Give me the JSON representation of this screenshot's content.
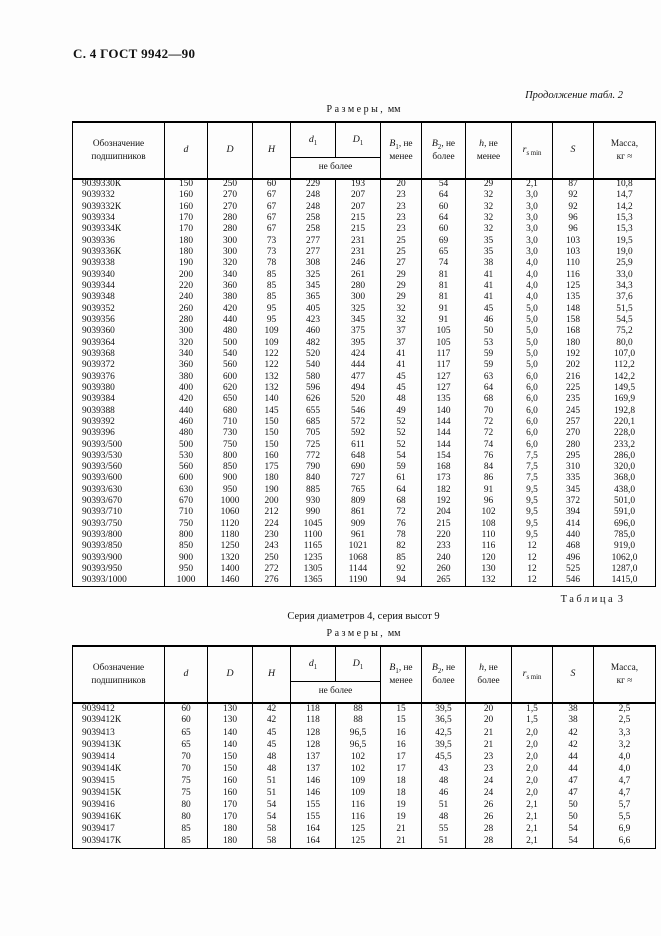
{
  "page": {
    "header": "С. 4 ГОСТ 9942—90"
  },
  "sizes": {
    "word": "Размеры,",
    "unit": "мм"
  },
  "header": {
    "designation_l1": "Обозначение",
    "designation_l2": "подшипников",
    "d": "d",
    "D": "D",
    "H": "H",
    "d1_base": "d",
    "d1_sub": "1",
    "D1_base": "D",
    "D1_sub": "1",
    "d1_note": "не более",
    "B1_base": "B",
    "B1_sub": "1",
    "B1_rest": ", не",
    "B1_l2": "менее",
    "B2_base": "B",
    "B2_sub": "2",
    "B2_rest": ", не",
    "B2_l2": "более",
    "h_base": "h",
    "h_rest": ", не",
    "rs_base": "r",
    "rs_sub": "s min",
    "S": "S",
    "mass_l1": "Масса,",
    "mass_l2": "кг ≈"
  },
  "table2": {
    "caption": "Продолжение табл. 2",
    "h_l2": "менее",
    "rows": [
      [
        "9039330К",
        "150",
        "250",
        "60",
        "229",
        "193",
        "20",
        "54",
        "29",
        "2,1",
        "87",
        "10,8"
      ],
      [
        "9039332",
        "160",
        "270",
        "67",
        "248",
        "207",
        "23",
        "64",
        "32",
        "3,0",
        "92",
        "14,7"
      ],
      [
        "9039332К",
        "160",
        "270",
        "67",
        "248",
        "207",
        "23",
        "60",
        "32",
        "3,0",
        "92",
        "14,2"
      ],
      [
        "9039334",
        "170",
        "280",
        "67",
        "258",
        "215",
        "23",
        "64",
        "32",
        "3,0",
        "96",
        "15,3"
      ],
      [
        "9039334К",
        "170",
        "280",
        "67",
        "258",
        "215",
        "23",
        "60",
        "32",
        "3,0",
        "96",
        "15,3"
      ],
      [
        "9039336",
        "180",
        "300",
        "73",
        "277",
        "231",
        "25",
        "69",
        "35",
        "3,0",
        "103",
        "19,5"
      ],
      [
        "9039336К",
        "180",
        "300",
        "73",
        "277",
        "231",
        "25",
        "65",
        "35",
        "3,0",
        "103",
        "19,0"
      ],
      [
        "9039338",
        "190",
        "320",
        "78",
        "308",
        "246",
        "27",
        "74",
        "38",
        "4,0",
        "110",
        "25,9"
      ],
      [
        "9039340",
        "200",
        "340",
        "85",
        "325",
        "261",
        "29",
        "81",
        "41",
        "4,0",
        "116",
        "33,0"
      ],
      [
        "9039344",
        "220",
        "360",
        "85",
        "345",
        "280",
        "29",
        "81",
        "41",
        "4,0",
        "125",
        "34,3"
      ],
      [
        "9039348",
        "240",
        "380",
        "85",
        "365",
        "300",
        "29",
        "81",
        "41",
        "4,0",
        "135",
        "37,6"
      ],
      [
        "9039352",
        "260",
        "420",
        "95",
        "405",
        "325",
        "32",
        "91",
        "45",
        "5,0",
        "148",
        "51,5"
      ],
      [
        "9039356",
        "280",
        "440",
        "95",
        "423",
        "345",
        "32",
        "91",
        "46",
        "5,0",
        "158",
        "54,5"
      ],
      [
        "9039360",
        "300",
        "480",
        "109",
        "460",
        "375",
        "37",
        "105",
        "50",
        "5,0",
        "168",
        "75,2"
      ],
      [
        "9039364",
        "320",
        "500",
        "109",
        "482",
        "395",
        "37",
        "105",
        "53",
        "5,0",
        "180",
        "80,0"
      ],
      [
        "9039368",
        "340",
        "540",
        "122",
        "520",
        "424",
        "41",
        "117",
        "59",
        "5,0",
        "192",
        "107,0"
      ],
      [
        "9039372",
        "360",
        "560",
        "122",
        "540",
        "444",
        "41",
        "117",
        "59",
        "5,0",
        "202",
        "112,2"
      ],
      [
        "9039376",
        "380",
        "600",
        "132",
        "580",
        "477",
        "45",
        "127",
        "63",
        "6,0",
        "216",
        "142,2"
      ],
      [
        "9039380",
        "400",
        "620",
        "132",
        "596",
        "494",
        "45",
        "127",
        "64",
        "6,0",
        "225",
        "149,5"
      ],
      [
        "9039384",
        "420",
        "650",
        "140",
        "626",
        "520",
        "48",
        "135",
        "68",
        "6,0",
        "235",
        "169,9"
      ],
      [
        "9039388",
        "440",
        "680",
        "145",
        "655",
        "546",
        "49",
        "140",
        "70",
        "6,0",
        "245",
        "192,8"
      ],
      [
        "9039392",
        "460",
        "710",
        "150",
        "685",
        "572",
        "52",
        "144",
        "72",
        "6,0",
        "257",
        "220,1"
      ],
      [
        "9039396",
        "480",
        "730",
        "150",
        "705",
        "592",
        "52",
        "144",
        "72",
        "6,0",
        "270",
        "228,0"
      ],
      [
        "90393/500",
        "500",
        "750",
        "150",
        "725",
        "611",
        "52",
        "144",
        "74",
        "6,0",
        "280",
        "233,2"
      ],
      [
        "90393/530",
        "530",
        "800",
        "160",
        "772",
        "648",
        "54",
        "154",
        "76",
        "7,5",
        "295",
        "286,0"
      ],
      [
        "90393/560",
        "560",
        "850",
        "175",
        "790",
        "690",
        "59",
        "168",
        "84",
        "7,5",
        "310",
        "320,0"
      ],
      [
        "90393/600",
        "600",
        "900",
        "180",
        "840",
        "727",
        "61",
        "173",
        "86",
        "7,5",
        "335",
        "368,0"
      ],
      [
        "90393/630",
        "630",
        "950",
        "190",
        "885",
        "765",
        "64",
        "182",
        "91",
        "9,5",
        "345",
        "438,0"
      ],
      [
        "90393/670",
        "670",
        "1000",
        "200",
        "930",
        "809",
        "68",
        "192",
        "96",
        "9,5",
        "372",
        "501,0"
      ],
      [
        "90393/710",
        "710",
        "1060",
        "212",
        "990",
        "861",
        "72",
        "204",
        "102",
        "9,5",
        "394",
        "591,0"
      ],
      [
        "90393/750",
        "750",
        "1120",
        "224",
        "1045",
        "909",
        "76",
        "215",
        "108",
        "9,5",
        "414",
        "696,0"
      ],
      [
        "90393/800",
        "800",
        "1180",
        "230",
        "1100",
        "961",
        "78",
        "220",
        "110",
        "9,5",
        "440",
        "785,0"
      ],
      [
        "90393/850",
        "850",
        "1250",
        "243",
        "1165",
        "1021",
        "82",
        "233",
        "116",
        "12",
        "468",
        "919,0"
      ],
      [
        "90393/900",
        "900",
        "1320",
        "250",
        "1235",
        "1068",
        "85",
        "240",
        "120",
        "12",
        "496",
        "1062,0"
      ],
      [
        "90393/950",
        "950",
        "1400",
        "272",
        "1305",
        "1144",
        "92",
        "260",
        "130",
        "12",
        "525",
        "1287,0"
      ],
      [
        "90393/1000",
        "1000",
        "1460",
        "276",
        "1365",
        "1190",
        "94",
        "265",
        "132",
        "12",
        "546",
        "1415,0"
      ]
    ]
  },
  "table3": {
    "label_word": "Таблица",
    "label_num": "3",
    "series_note": "Серия диаметров 4, серия высот 9",
    "h_l2": "более",
    "rows": [
      [
        "9039412",
        "60",
        "130",
        "42",
        "118",
        "88",
        "15",
        "39,5",
        "20",
        "1,5",
        "38",
        "2,5"
      ],
      [
        "9039412К",
        "60",
        "130",
        "42",
        "118",
        "88",
        "15",
        "36,5",
        "20",
        "1,5",
        "38",
        "2,5"
      ],
      [
        "9039413",
        "65",
        "140",
        "45",
        "128",
        "96,5",
        "16",
        "42,5",
        "21",
        "2,0",
        "42",
        "3,3"
      ],
      [
        "9039413К",
        "65",
        "140",
        "45",
        "128",
        "96,5",
        "16",
        "39,5",
        "21",
        "2,0",
        "42",
        "3,2"
      ],
      [
        "9039414",
        "70",
        "150",
        "48",
        "137",
        "102",
        "17",
        "45,5",
        "23",
        "2,0",
        "44",
        "4,0"
      ],
      [
        "9039414К",
        "70",
        "150",
        "48",
        "137",
        "102",
        "17",
        "43",
        "23",
        "2,0",
        "44",
        "4,0"
      ],
      [
        "9039415",
        "75",
        "160",
        "51",
        "146",
        "109",
        "18",
        "48",
        "24",
        "2,0",
        "47",
        "4,7"
      ],
      [
        "9039415К",
        "75",
        "160",
        "51",
        "146",
        "109",
        "18",
        "46",
        "24",
        "2,0",
        "47",
        "4,7"
      ],
      [
        "9039416",
        "80",
        "170",
        "54",
        "155",
        "116",
        "19",
        "51",
        "26",
        "2,1",
        "50",
        "5,7"
      ],
      [
        "9039416К",
        "80",
        "170",
        "54",
        "155",
        "116",
        "19",
        "48",
        "26",
        "2,1",
        "50",
        "5,5"
      ],
      [
        "9039417",
        "85",
        "180",
        "58",
        "164",
        "125",
        "21",
        "55",
        "28",
        "2,1",
        "54",
        "6,9"
      ],
      [
        "9039417К",
        "85",
        "180",
        "58",
        "164",
        "125",
        "21",
        "51",
        "28",
        "2,1",
        "54",
        "6,6"
      ]
    ]
  }
}
